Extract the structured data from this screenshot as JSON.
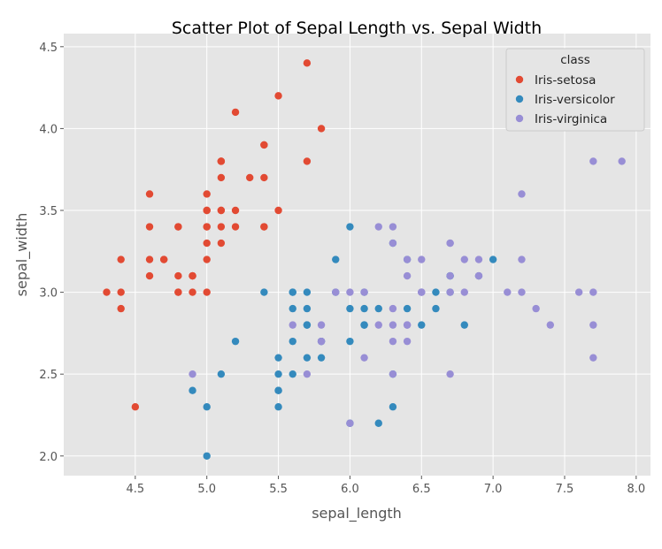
{
  "chart_data": {
    "type": "scatter",
    "title": "Scatter Plot of Sepal Length vs. Sepal Width",
    "xlabel": "sepal_length",
    "ylabel": "sepal_width",
    "xlim": [
      4.0,
      8.1
    ],
    "ylim": [
      1.88,
      4.58
    ],
    "xticks": [
      "4.5",
      "5.0",
      "5.5",
      "6.0",
      "6.5",
      "7.0",
      "7.5",
      "8.0"
    ],
    "yticks": [
      "2.0",
      "2.5",
      "3.0",
      "3.5",
      "4.0",
      "4.5"
    ],
    "grid": true,
    "legend": {
      "title": "class",
      "placement": "top-right"
    },
    "series": [
      {
        "name": "Iris-setosa",
        "color": "#E24A33",
        "points": [
          [
            5.1,
            3.5
          ],
          [
            4.9,
            3.0
          ],
          [
            4.7,
            3.2
          ],
          [
            4.6,
            3.1
          ],
          [
            5.0,
            3.6
          ],
          [
            5.4,
            3.9
          ],
          [
            4.6,
            3.4
          ],
          [
            5.0,
            3.4
          ],
          [
            4.4,
            2.9
          ],
          [
            4.9,
            3.1
          ],
          [
            5.4,
            3.7
          ],
          [
            4.8,
            3.4
          ],
          [
            4.8,
            3.0
          ],
          [
            4.3,
            3.0
          ],
          [
            5.8,
            4.0
          ],
          [
            5.7,
            4.4
          ],
          [
            5.4,
            3.9
          ],
          [
            5.1,
            3.5
          ],
          [
            5.7,
            3.8
          ],
          [
            5.1,
            3.8
          ],
          [
            5.4,
            3.4
          ],
          [
            5.1,
            3.7
          ],
          [
            4.6,
            3.6
          ],
          [
            5.1,
            3.3
          ],
          [
            4.8,
            3.4
          ],
          [
            5.0,
            3.0
          ],
          [
            5.0,
            3.4
          ],
          [
            5.2,
            3.5
          ],
          [
            5.2,
            3.4
          ],
          [
            4.7,
            3.2
          ],
          [
            4.8,
            3.1
          ],
          [
            5.4,
            3.4
          ],
          [
            5.2,
            4.1
          ],
          [
            5.5,
            4.2
          ],
          [
            4.9,
            3.1
          ],
          [
            5.0,
            3.2
          ],
          [
            5.5,
            3.5
          ],
          [
            4.9,
            3.1
          ],
          [
            4.4,
            3.0
          ],
          [
            5.1,
            3.4
          ],
          [
            5.0,
            3.5
          ],
          [
            4.5,
            2.3
          ],
          [
            4.4,
            3.2
          ],
          [
            5.0,
            3.5
          ],
          [
            5.1,
            3.8
          ],
          [
            4.8,
            3.0
          ],
          [
            5.1,
            3.8
          ],
          [
            4.6,
            3.2
          ],
          [
            5.3,
            3.7
          ],
          [
            5.0,
            3.3
          ]
        ]
      },
      {
        "name": "Iris-versicolor",
        "color": "#348ABD",
        "points": [
          [
            7.0,
            3.2
          ],
          [
            6.4,
            3.2
          ],
          [
            6.9,
            3.1
          ],
          [
            5.5,
            2.3
          ],
          [
            6.5,
            2.8
          ],
          [
            5.7,
            2.8
          ],
          [
            6.3,
            3.3
          ],
          [
            4.9,
            2.4
          ],
          [
            6.6,
            2.9
          ],
          [
            5.2,
            2.7
          ],
          [
            5.0,
            2.0
          ],
          [
            5.9,
            3.0
          ],
          [
            6.0,
            2.2
          ],
          [
            6.1,
            2.9
          ],
          [
            5.6,
            2.9
          ],
          [
            6.7,
            3.1
          ],
          [
            5.6,
            3.0
          ],
          [
            5.8,
            2.7
          ],
          [
            6.2,
            2.2
          ],
          [
            5.6,
            2.5
          ],
          [
            5.9,
            3.2
          ],
          [
            6.1,
            2.8
          ],
          [
            6.3,
            2.5
          ],
          [
            6.1,
            2.8
          ],
          [
            6.4,
            2.9
          ],
          [
            6.6,
            3.0
          ],
          [
            6.8,
            2.8
          ],
          [
            6.7,
            3.0
          ],
          [
            6.0,
            2.9
          ],
          [
            5.7,
            2.6
          ],
          [
            5.5,
            2.4
          ],
          [
            5.5,
            2.4
          ],
          [
            5.8,
            2.7
          ],
          [
            6.0,
            2.7
          ],
          [
            5.4,
            3.0
          ],
          [
            6.0,
            3.4
          ],
          [
            6.7,
            3.1
          ],
          [
            6.3,
            2.3
          ],
          [
            5.6,
            3.0
          ],
          [
            5.5,
            2.5
          ],
          [
            5.5,
            2.6
          ],
          [
            6.1,
            3.0
          ],
          [
            5.8,
            2.6
          ],
          [
            5.0,
            2.3
          ],
          [
            5.6,
            2.7
          ],
          [
            5.7,
            3.0
          ],
          [
            5.7,
            2.9
          ],
          [
            6.2,
            2.9
          ],
          [
            5.1,
            2.5
          ],
          [
            5.7,
            2.8
          ]
        ]
      },
      {
        "name": "Iris-virginica",
        "color": "#988ED5",
        "points": [
          [
            6.3,
            3.3
          ],
          [
            5.8,
            2.7
          ],
          [
            7.1,
            3.0
          ],
          [
            6.3,
            2.9
          ],
          [
            6.5,
            3.0
          ],
          [
            7.6,
            3.0
          ],
          [
            4.9,
            2.5
          ],
          [
            7.3,
            2.9
          ],
          [
            6.7,
            2.5
          ],
          [
            7.2,
            3.6
          ],
          [
            6.5,
            3.2
          ],
          [
            6.4,
            2.7
          ],
          [
            6.8,
            3.0
          ],
          [
            5.7,
            2.5
          ],
          [
            5.8,
            2.8
          ],
          [
            6.4,
            3.2
          ],
          [
            6.5,
            3.0
          ],
          [
            7.7,
            3.8
          ],
          [
            7.7,
            2.6
          ],
          [
            6.0,
            2.2
          ],
          [
            6.9,
            3.2
          ],
          [
            5.6,
            2.8
          ],
          [
            7.7,
            2.8
          ],
          [
            6.3,
            2.7
          ],
          [
            6.7,
            3.3
          ],
          [
            7.2,
            3.2
          ],
          [
            6.2,
            2.8
          ],
          [
            6.1,
            3.0
          ],
          [
            6.4,
            2.8
          ],
          [
            7.2,
            3.0
          ],
          [
            7.4,
            2.8
          ],
          [
            7.9,
            3.8
          ],
          [
            6.4,
            2.8
          ],
          [
            6.3,
            2.8
          ],
          [
            6.1,
            2.6
          ],
          [
            7.7,
            3.0
          ],
          [
            6.3,
            3.4
          ],
          [
            6.4,
            3.1
          ],
          [
            6.0,
            3.0
          ],
          [
            6.9,
            3.1
          ],
          [
            6.7,
            3.1
          ],
          [
            6.9,
            3.1
          ],
          [
            5.8,
            2.7
          ],
          [
            6.8,
            3.2
          ],
          [
            6.7,
            3.3
          ],
          [
            6.7,
            3.0
          ],
          [
            6.3,
            2.5
          ],
          [
            6.5,
            3.0
          ],
          [
            6.2,
            3.4
          ],
          [
            5.9,
            3.0
          ]
        ]
      }
    ]
  }
}
